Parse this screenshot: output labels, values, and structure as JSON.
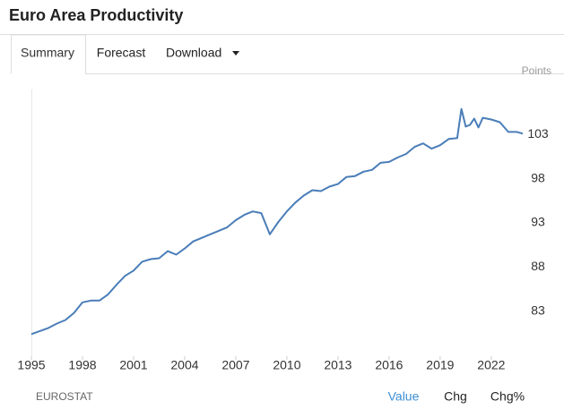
{
  "header": {
    "title": "Euro Area Productivity"
  },
  "tabs": [
    "Summary",
    "Forecast",
    "Download"
  ],
  "chart_data": {
    "type": "line",
    "y_label": "Points",
    "x": [
      1995,
      1996,
      1996.5,
      1997,
      1997.5,
      1998,
      1998.5,
      1999,
      1999.5,
      2000,
      2000.5,
      2001,
      2001.5,
      2002,
      2002.5,
      2003,
      2003.5,
      2004,
      2004.5,
      2005,
      2005.5,
      2006,
      2006.5,
      2007,
      2007.5,
      2008,
      2008.5,
      2009,
      2009.5,
      2010,
      2010.5,
      2011,
      2011.5,
      2012,
      2012.5,
      2013,
      2013.5,
      2014,
      2014.5,
      2015,
      2015.5,
      2016,
      2016.5,
      2017,
      2017.5,
      2018,
      2018.5,
      2019,
      2019.5,
      2020,
      2020.25,
      2020.5,
      2020.75,
      2021,
      2021.25,
      2021.5,
      2022,
      2022.5,
      2023,
      2023.5,
      2023.85
    ],
    "series": [
      {
        "name": "Productivity",
        "color": "#4a7db8",
        "values": [
          80.4,
          81.1,
          81.6,
          82.0,
          82.8,
          84.0,
          84.2,
          84.2,
          84.9,
          86.0,
          87.0,
          87.6,
          88.6,
          88.9,
          89.0,
          89.8,
          89.4,
          90.1,
          90.9,
          91.3,
          91.7,
          92.1,
          92.5,
          93.3,
          93.9,
          94.3,
          94.1,
          91.7,
          93.1,
          94.3,
          95.3,
          96.1,
          96.7,
          96.6,
          97.1,
          97.4,
          98.2,
          98.3,
          98.8,
          99.0,
          99.8,
          99.9,
          100.4,
          100.8,
          101.6,
          102.0,
          101.4,
          101.8,
          102.5,
          102.6,
          105.9,
          103.9,
          104.1,
          104.8,
          103.8,
          104.9,
          104.7,
          104.4,
          103.3,
          103.3,
          103.1
        ]
      }
    ],
    "xlim": [
      1995,
      2023.85
    ],
    "xticks": [
      1995,
      1998,
      2001,
      2004,
      2007,
      2010,
      2013,
      2016,
      2019,
      2022
    ],
    "ylim": [
      77.9,
      108.1
    ],
    "yticks": [
      83,
      88,
      93,
      98,
      103
    ],
    "grid": false
  },
  "footer": {
    "source": "EUROSTAT",
    "views": [
      "Value",
      "Chg",
      "Chg%"
    ]
  }
}
